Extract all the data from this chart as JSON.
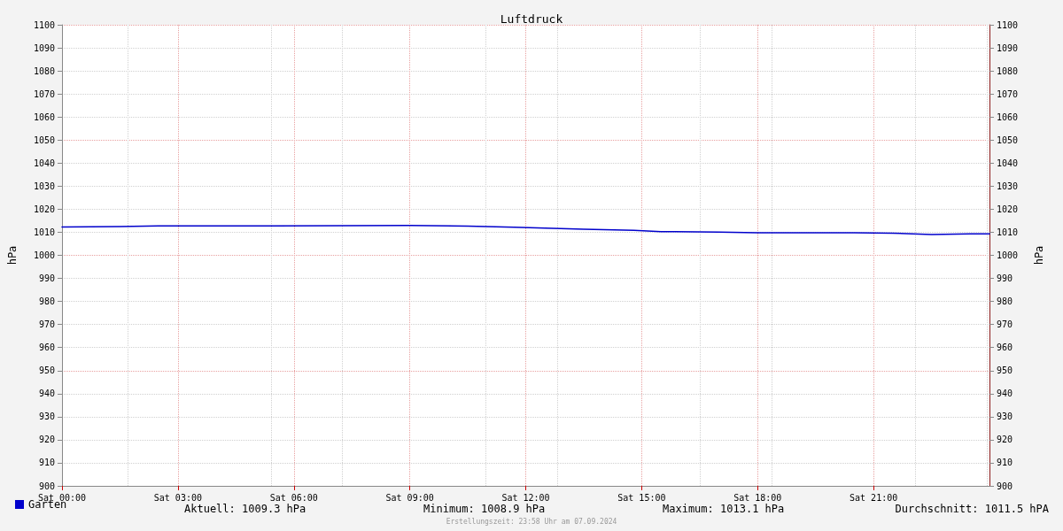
{
  "chart_data": {
    "type": "line",
    "title": "Luftdruck",
    "ylabel": "hPa",
    "y2label": "hPa",
    "x": [
      "2024-09-07T00:00",
      "2024-09-07T01:30",
      "2024-09-07T02:30",
      "2024-09-07T05:30",
      "2024-09-07T09:00",
      "2024-09-07T10:30",
      "2024-09-07T11:42",
      "2024-09-07T12:30",
      "2024-09-07T13:30",
      "2024-09-07T14:48",
      "2024-09-07T15:30",
      "2024-09-07T17:00",
      "2024-09-07T18:00",
      "2024-09-07T20:30",
      "2024-09-07T21:30",
      "2024-09-07T22:30",
      "2024-09-07T23:30",
      "2024-09-08T00:00"
    ],
    "series": [
      {
        "name": "Garten",
        "color": "#0000cc",
        "values": [
          1012.3,
          1012.5,
          1012.8,
          1012.8,
          1013.0,
          1012.7,
          1012.2,
          1011.8,
          1011.3,
          1010.8,
          1010.3,
          1010.1,
          1009.8,
          1009.8,
          1009.6,
          1009.0,
          1009.3,
          1009.3
        ]
      }
    ],
    "xlim": [
      "2024-09-07T00:00",
      "2024-09-08T00:00"
    ],
    "xticks": [
      {
        "value": "2024-09-07T00:00",
        "label": "Sat 00:00"
      },
      {
        "value": "2024-09-07T03:00",
        "label": "Sat 03:00"
      },
      {
        "value": "2024-09-07T06:00",
        "label": "Sat 06:00"
      },
      {
        "value": "2024-09-07T09:00",
        "label": "Sat 09:00"
      },
      {
        "value": "2024-09-07T12:00",
        "label": "Sat 12:00"
      },
      {
        "value": "2024-09-07T15:00",
        "label": "Sat 15:00"
      },
      {
        "value": "2024-09-07T18:00",
        "label": "Sat 18:00"
      },
      {
        "value": "2024-09-07T21:00",
        "label": "Sat 21:00"
      }
    ],
    "ylim": [
      900,
      1100
    ],
    "yticks": [
      900,
      910,
      920,
      930,
      940,
      950,
      960,
      970,
      980,
      990,
      1000,
      1010,
      1020,
      1030,
      1040,
      1050,
      1060,
      1070,
      1080,
      1090,
      1100
    ],
    "y2lim": [
      900,
      1100
    ],
    "y2ticks": [
      900,
      910,
      920,
      930,
      940,
      950,
      960,
      970,
      980,
      990,
      1000,
      1010,
      1020,
      1030,
      1040,
      1050,
      1060,
      1070,
      1080,
      1090,
      1100
    ],
    "grid": true,
    "legend": "bottom left",
    "marker": "none",
    "line_style": "solid",
    "annotations": [
      "Aktuell: 1009.3 hPa",
      "Minimum: 1008.9 hPa",
      "Maximum: 1013.1 hPa",
      "Durchschnitt: 1011.5 hPA",
      "Erstellungszeit: 23:58 Uhr am 07.09.2024"
    ]
  }
}
